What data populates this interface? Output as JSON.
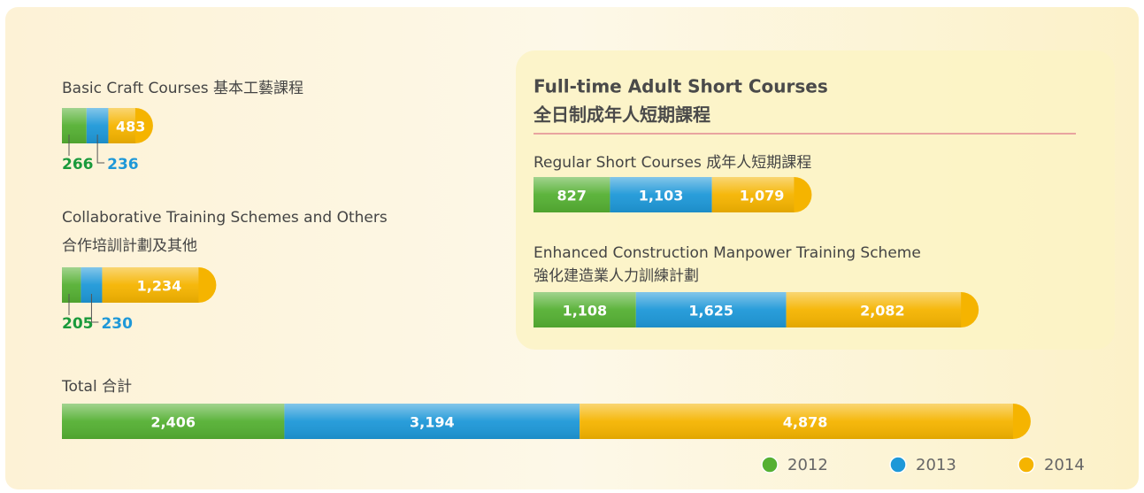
{
  "group_heading": {
    "title": "Full-time Adult Short Courses",
    "subtitle": "全日制成年人短期課程"
  },
  "chart_data": [
    {
      "type": "bar",
      "title": "Basic Craft Courses 基本工藝課程",
      "series": [
        {
          "name": "2012",
          "color": "#55b033",
          "values": [
            266
          ]
        },
        {
          "name": "2013",
          "color": "#1e98d8",
          "values": [
            236
          ]
        },
        {
          "name": "2014",
          "color": "#f5b400",
          "values": [
            483
          ]
        }
      ]
    },
    {
      "type": "bar",
      "title": "Collaborative Training Schemes and Others",
      "subtitle": "合作培訓計劃及其他",
      "series": [
        {
          "name": "2012",
          "color": "#55b033",
          "values": [
            205
          ]
        },
        {
          "name": "2013",
          "color": "#1e98d8",
          "values": [
            230
          ]
        },
        {
          "name": "2014",
          "color": "#f5b400",
          "values": [
            1234
          ],
          "value_labels": [
            "1,234"
          ]
        }
      ]
    },
    {
      "type": "bar",
      "title": "Regular Short Courses 成年人短期課程",
      "series": [
        {
          "name": "2012",
          "color": "#55b033",
          "values": [
            827
          ]
        },
        {
          "name": "2013",
          "color": "#1e98d8",
          "values": [
            1103
          ],
          "value_labels": [
            "1,103"
          ]
        },
        {
          "name": "2014",
          "color": "#f5b400",
          "values": [
            1079
          ],
          "value_labels": [
            "1,079"
          ]
        }
      ]
    },
    {
      "type": "bar",
      "title": "Enhanced Construction Manpower Training Scheme",
      "subtitle": "強化建造業人力訓練計劃",
      "series": [
        {
          "name": "2012",
          "color": "#55b033",
          "values": [
            1108
          ],
          "value_labels": [
            "1,108"
          ]
        },
        {
          "name": "2013",
          "color": "#1e98d8",
          "values": [
            1625
          ],
          "value_labels": [
            "1,625"
          ]
        },
        {
          "name": "2014",
          "color": "#f5b400",
          "values": [
            2082
          ],
          "value_labels": [
            "2,082"
          ]
        }
      ]
    },
    {
      "type": "bar",
      "title": "Total 合計",
      "series": [
        {
          "name": "2012",
          "color": "#55b033",
          "values": [
            2406
          ],
          "value_labels": [
            "2,406"
          ]
        },
        {
          "name": "2013",
          "color": "#1e98d8",
          "values": [
            3194
          ],
          "value_labels": [
            "3,194"
          ]
        },
        {
          "name": "2014",
          "color": "#f5b400",
          "values": [
            4878
          ],
          "value_labels": [
            "4,878"
          ]
        }
      ]
    }
  ]
}
